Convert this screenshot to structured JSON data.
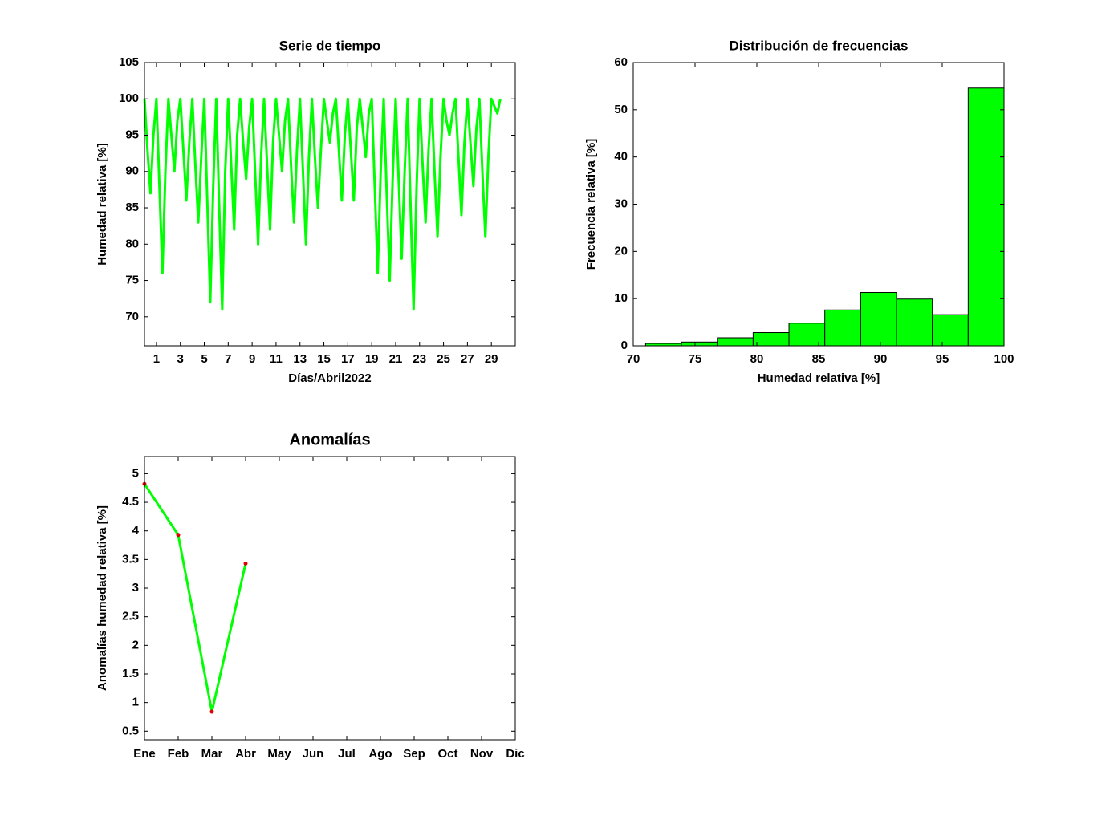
{
  "chart_data": [
    {
      "type": "line",
      "title": "Serie de tiempo",
      "xlabel": "Días/Abril2022",
      "ylabel": "Humedad relativa [%]",
      "color": "#00ff00",
      "xlim": [
        0,
        31
      ],
      "xticks": [
        1,
        3,
        5,
        7,
        9,
        11,
        13,
        15,
        17,
        19,
        21,
        23,
        25,
        27,
        29
      ],
      "ylim": [
        66,
        105
      ],
      "yticks": [
        70,
        75,
        80,
        85,
        90,
        95,
        100,
        105
      ],
      "x": [
        0,
        0.25,
        0.5,
        0.75,
        1,
        1.25,
        1.5,
        1.75,
        2,
        2.25,
        2.5,
        2.75,
        3,
        3.25,
        3.5,
        3.75,
        4,
        4.25,
        4.5,
        4.75,
        5,
        5.25,
        5.5,
        5.75,
        6,
        6.25,
        6.5,
        6.75,
        7,
        7.25,
        7.5,
        7.75,
        8,
        8.25,
        8.5,
        8.75,
        9,
        9.25,
        9.5,
        9.75,
        10,
        10.25,
        10.5,
        10.75,
        11,
        11.25,
        11.5,
        11.75,
        12,
        12.25,
        12.5,
        12.75,
        13,
        13.25,
        13.5,
        13.75,
        14,
        14.25,
        14.5,
        14.75,
        15,
        15.25,
        15.5,
        15.75,
        16,
        16.25,
        16.5,
        16.75,
        17,
        17.25,
        17.5,
        17.75,
        18,
        18.25,
        18.5,
        18.75,
        19,
        19.25,
        19.5,
        19.75,
        20,
        20.25,
        20.5,
        20.75,
        21,
        21.25,
        21.5,
        21.75,
        22,
        22.25,
        22.5,
        22.75,
        23,
        23.25,
        23.5,
        23.75,
        24,
        24.25,
        24.5,
        24.75,
        25,
        25.25,
        25.5,
        25.75,
        26,
        26.25,
        26.5,
        26.75,
        27,
        27.25,
        27.5,
        27.75,
        28,
        28.25,
        28.5,
        28.75,
        29,
        29.25,
        29.5,
        29.75
      ],
      "values": [
        100,
        93,
        87,
        95,
        100,
        88,
        76,
        90,
        100,
        95,
        90,
        97,
        100,
        93,
        86,
        94,
        100,
        91,
        83,
        92,
        100,
        86,
        72,
        88,
        100,
        85,
        71,
        90,
        100,
        91,
        82,
        95,
        100,
        94,
        89,
        96,
        100,
        90,
        80,
        92,
        100,
        91,
        82,
        94,
        100,
        95,
        90,
        97,
        100,
        91,
        83,
        93,
        100,
        90,
        80,
        92,
        100,
        92,
        85,
        93,
        100,
        97,
        94,
        98,
        100,
        93,
        86,
        95,
        100,
        93,
        86,
        96,
        100,
        96,
        92,
        98,
        100,
        88,
        76,
        90,
        100,
        87,
        75,
        89,
        100,
        89,
        78,
        90,
        100,
        85,
        71,
        88,
        100,
        91,
        83,
        93,
        100,
        90,
        81,
        92,
        100,
        97,
        95,
        98,
        100,
        92,
        84,
        94,
        100,
        94,
        88,
        96,
        100,
        90,
        81,
        92,
        100,
        99,
        98,
        100
      ]
    },
    {
      "type": "histogram",
      "title": "Distribución de frecuencias",
      "xlabel": "Humedad relativa [%]",
      "ylabel": "Frecuencia relativa [%]",
      "color": "#00ff00",
      "xlim": [
        70,
        100
      ],
      "xticks": [
        70,
        75,
        80,
        85,
        90,
        95,
        100
      ],
      "ylim": [
        0,
        60
      ],
      "yticks": [
        0,
        10,
        20,
        30,
        40,
        50,
        60
      ],
      "bins": [
        71,
        73.9,
        76.8,
        79.7,
        82.6,
        85.5,
        88.4,
        91.3,
        94.2,
        97.1,
        100
      ],
      "values": [
        0.5,
        0.8,
        1.7,
        2.8,
        4.8,
        7.6,
        11.3,
        9.9,
        6.6,
        54.6
      ]
    },
    {
      "type": "line",
      "title": "Anomalías",
      "ylabel": "Anomalías humedad relativa [%]",
      "color": "#00ff00",
      "marker_color": "#dd0000",
      "categories": [
        "Ene",
        "Feb",
        "Mar",
        "Abr",
        "May",
        "Jun",
        "Jul",
        "Ago",
        "Sep",
        "Oct",
        "Nov",
        "Dic"
      ],
      "values": [
        4.82,
        3.93,
        0.84,
        3.43,
        null,
        null,
        null,
        null,
        null,
        null,
        null,
        null
      ],
      "ylim": [
        0.35,
        5.3
      ],
      "yticks": [
        0.5,
        1,
        1.5,
        2,
        2.5,
        3,
        3.5,
        4,
        4.5,
        5
      ]
    }
  ]
}
